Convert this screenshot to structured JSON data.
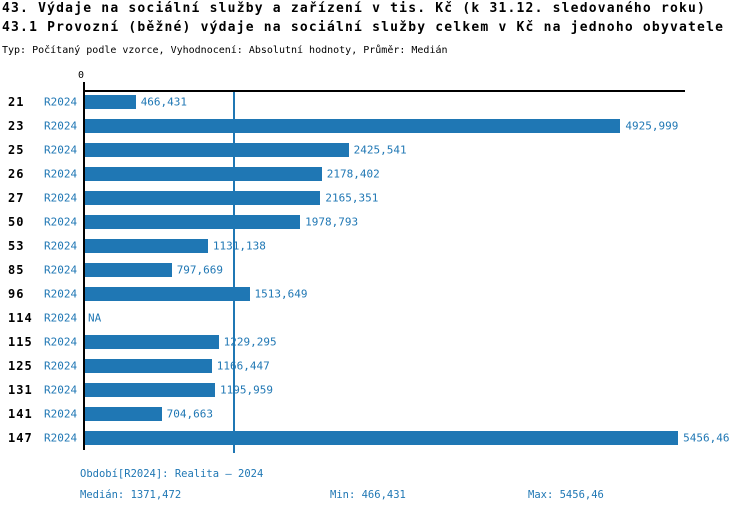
{
  "header": {
    "title": "43. Výdaje na sociální služby a zařízení v tis. Kč (k 31.12. sledovaného roku)",
    "subtitle": "43.1 Provozní (běžné) výdaje na sociální služby celkem v Kč na jednoho obyvatele",
    "meta": "Typ: Počítaný podle vzorce, Vyhodnocení: Absolutní hodnoty, Průměr: Medián"
  },
  "chart_data": {
    "type": "bar",
    "orientation": "horizontal",
    "title": "43. Výdaje na sociální služby a zařízení v tis. Kč (k 31.12. sledovaného roku)",
    "subtitle": "43.1 Provozní (běžné) výdaje na sociální služby celkem v Kč na jednoho obyvatele",
    "categories": [
      "21",
      "23",
      "25",
      "26",
      "27",
      "50",
      "53",
      "85",
      "96",
      "114",
      "115",
      "125",
      "131",
      "141",
      "147"
    ],
    "series_label": "R2024",
    "values": [
      466.431,
      4925.999,
      2425.541,
      2178.402,
      2165.351,
      1978.793,
      1131.138,
      797.669,
      1513.649,
      null,
      1229.295,
      1166.447,
      1195.959,
      704.663,
      5456.46
    ],
    "value_labels": [
      "466,431",
      "4925,999",
      "2425,541",
      "2178,402",
      "2165,351",
      "1978,793",
      "1131,138",
      "797,669",
      "1513,649",
      "NA",
      "1229,295",
      "1166,447",
      "1195,959",
      "704,663",
      "5456,46"
    ],
    "x_axis": {
      "zero_label": "0",
      "xlim": [
        0,
        5520
      ]
    },
    "median": 1371.472,
    "grid": false,
    "legend_position": "bottom",
    "bar_color": "#1f77b4",
    "median_line_color": "#1f77b4",
    "axis_color": "#000000"
  },
  "footer": {
    "period": "Období[R2024]: Realita – 2024",
    "median": "Medián: 1371,472",
    "min": "Min: 466,431",
    "max": "Max: 5456,46"
  }
}
